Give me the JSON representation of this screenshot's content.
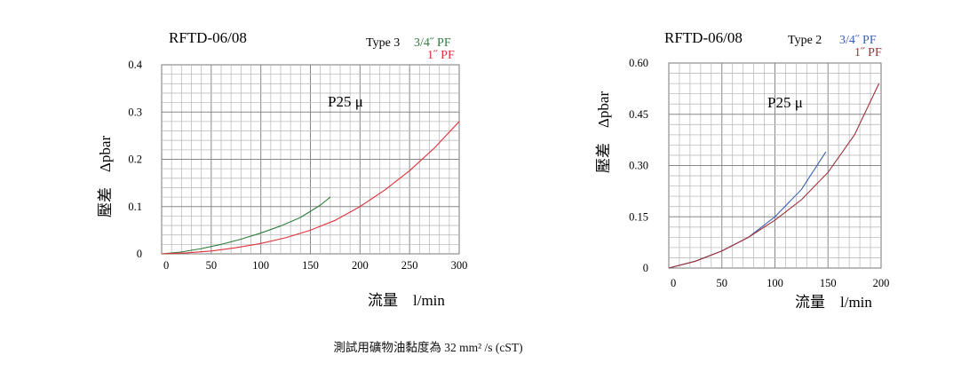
{
  "footnote": "測試用礦物油黏度為 32 mm² /s (cST)",
  "chart_data": [
    {
      "type": "line",
      "title": "RFTD-06/08",
      "type_label": "Type 3",
      "annotation": "P25 μ",
      "xlabel": "流量　l/min",
      "ylabel": "壓差　Δpbar",
      "xlim": [
        0,
        300
      ],
      "ylim": [
        0,
        0.4
      ],
      "x_ticks": [
        "0",
        "50",
        "100",
        "150",
        "200",
        "250",
        "300"
      ],
      "y_ticks": [
        "0",
        "0.1",
        "0.2",
        "0.3",
        "0.4"
      ],
      "grid": true,
      "series": [
        {
          "name": "3/4˝  PF",
          "color": "#2e7d3e",
          "x": [
            0,
            20,
            40,
            60,
            80,
            100,
            120,
            140,
            160,
            170
          ],
          "y": [
            0.0,
            0.004,
            0.011,
            0.02,
            0.031,
            0.044,
            0.059,
            0.077,
            0.103,
            0.12
          ]
        },
        {
          "name": "1˝  PF",
          "color": "#e0303a",
          "x": [
            0,
            25,
            50,
            75,
            100,
            125,
            150,
            175,
            200,
            225,
            250,
            275,
            300
          ],
          "y": [
            0.0,
            0.002,
            0.006,
            0.013,
            0.022,
            0.034,
            0.05,
            0.071,
            0.1,
            0.135,
            0.176,
            0.224,
            0.28
          ]
        }
      ]
    },
    {
      "type": "line",
      "title": "RFTD-06/08",
      "type_label": "Type 2",
      "annotation": "P25 μ",
      "xlabel": "流量　l/min",
      "ylabel": "壓差　Δpbar",
      "xlim": [
        0,
        200
      ],
      "ylim": [
        0,
        0.6
      ],
      "x_ticks": [
        "0",
        "50",
        "100",
        "150",
        "200"
      ],
      "y_ticks": [
        "0",
        "0.15",
        "0.30",
        "0.45",
        "0.60"
      ],
      "grid": true,
      "series": [
        {
          "name": "3/4˝  PF",
          "color": "#3b5fb5",
          "x": [
            0,
            25,
            50,
            75,
            100,
            125,
            148
          ],
          "y": [
            0.0,
            0.02,
            0.05,
            0.09,
            0.15,
            0.23,
            0.34
          ]
        },
        {
          "name": "1˝  PF",
          "color": "#a0303a",
          "x": [
            0,
            25,
            50,
            75,
            100,
            125,
            150,
            175,
            198
          ],
          "y": [
            0.0,
            0.02,
            0.05,
            0.09,
            0.14,
            0.2,
            0.28,
            0.39,
            0.54
          ]
        }
      ]
    }
  ]
}
